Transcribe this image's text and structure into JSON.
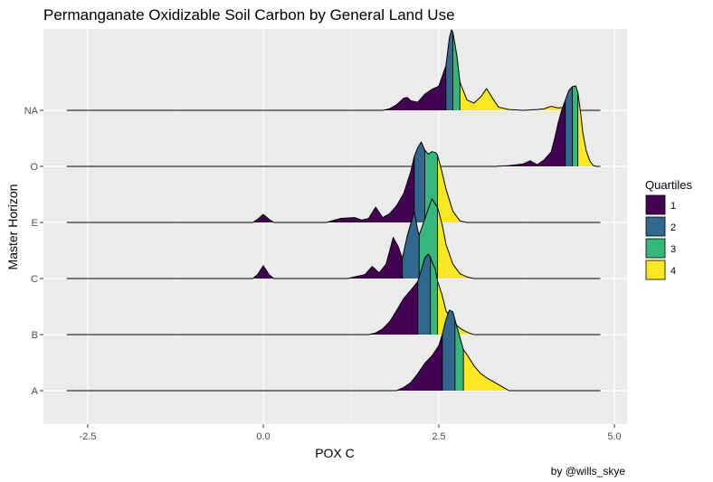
{
  "chart_data": {
    "type": "ridgeline",
    "title": "Permanganate Oxidizable Soil Carbon by General Land Use",
    "xlabel": "POX C",
    "ylabel": "Master Horizon",
    "caption": "by @wills_skye",
    "xlim": [
      -3.2,
      5.2
    ],
    "x_ticks": [
      -2.5,
      0.0,
      2.5,
      5.0
    ],
    "x_tick_labels": [
      "-2.5",
      "0.0",
      "2.5",
      "5.0"
    ],
    "categories": [
      "A",
      "B",
      "C",
      "E",
      "O",
      "NA"
    ],
    "baseline_range": [
      -2.8,
      4.8
    ],
    "legend": {
      "title": "Quartiles",
      "position": "right",
      "items": [
        {
          "label": "1",
          "color": "#440154"
        },
        {
          "label": "2",
          "color": "#31688E"
        },
        {
          "label": "3",
          "color": "#35B779"
        },
        {
          "label": "4",
          "color": "#FDE725"
        }
      ]
    },
    "series": [
      {
        "category": "A",
        "quartile_cuts": [
          2.55,
          2.73,
          2.85
        ],
        "x": [
          1.9,
          2.0,
          2.1,
          2.2,
          2.3,
          2.4,
          2.5,
          2.55,
          2.6,
          2.65,
          2.7,
          2.73,
          2.8,
          2.85,
          2.9,
          3.0,
          3.1,
          3.2,
          3.3,
          3.4,
          3.5
        ],
        "density": [
          0.0,
          0.04,
          0.1,
          0.21,
          0.34,
          0.43,
          0.56,
          0.7,
          0.88,
          1.0,
          0.98,
          0.88,
          0.66,
          0.51,
          0.45,
          0.31,
          0.21,
          0.15,
          0.1,
          0.05,
          0.0
        ]
      },
      {
        "category": "B",
        "quartile_cuts": [
          2.2,
          2.38,
          2.48
        ],
        "x": [
          1.5,
          1.6,
          1.7,
          1.8,
          1.9,
          2.0,
          2.1,
          2.2,
          2.25,
          2.3,
          2.35,
          2.38,
          2.4,
          2.45,
          2.48,
          2.55,
          2.6,
          2.7,
          2.8,
          2.9,
          3.0
        ],
        "density": [
          0.0,
          0.02,
          0.07,
          0.16,
          0.3,
          0.45,
          0.55,
          0.66,
          0.8,
          0.95,
          1.0,
          0.96,
          0.91,
          0.81,
          0.67,
          0.48,
          0.3,
          0.16,
          0.08,
          0.03,
          0.0
        ]
      },
      {
        "category": "C",
        "quartile_cuts": [
          1.98,
          2.22,
          2.48
        ],
        "x": [
          -0.15,
          -0.08,
          0.0,
          0.08,
          0.15,
          0.4,
          0.8,
          1.2,
          1.45,
          1.55,
          1.65,
          1.75,
          1.85,
          1.92,
          1.98,
          2.05,
          2.15,
          2.2,
          2.22,
          2.3,
          2.4,
          2.48,
          2.55,
          2.6,
          2.7,
          2.8,
          2.9,
          3.0
        ],
        "density": [
          0.0,
          0.05,
          0.16,
          0.05,
          0.0,
          0.0,
          0.0,
          0.0,
          0.05,
          0.15,
          0.07,
          0.18,
          0.51,
          0.4,
          0.25,
          0.53,
          0.83,
          0.6,
          0.54,
          0.74,
          0.99,
          0.89,
          0.66,
          0.43,
          0.18,
          0.06,
          0.02,
          0.0
        ]
      },
      {
        "category": "E",
        "quartile_cuts": [
          2.15,
          2.3,
          2.48
        ],
        "x": [
          -0.15,
          -0.08,
          0.0,
          0.08,
          0.15,
          0.5,
          0.9,
          1.1,
          1.3,
          1.4,
          1.5,
          1.6,
          1.7,
          1.8,
          1.9,
          2.0,
          2.1,
          2.15,
          2.2,
          2.25,
          2.3,
          2.35,
          2.4,
          2.45,
          2.48,
          2.55,
          2.6,
          2.7,
          2.8,
          2.9
        ],
        "density": [
          0.0,
          0.04,
          0.1,
          0.04,
          0.0,
          0.0,
          0.0,
          0.05,
          0.06,
          0.03,
          0.05,
          0.19,
          0.06,
          0.11,
          0.21,
          0.36,
          0.63,
          0.82,
          0.93,
          1.0,
          0.9,
          0.85,
          0.88,
          0.87,
          0.84,
          0.61,
          0.42,
          0.14,
          0.02,
          0.0
        ]
      },
      {
        "category": "O",
        "quartile_cuts": [
          4.3,
          4.4,
          4.48
        ],
        "x": [
          3.3,
          3.5,
          3.7,
          3.8,
          3.9,
          4.0,
          4.1,
          4.15,
          4.2,
          4.25,
          4.3,
          4.35,
          4.4,
          4.45,
          4.48,
          4.52,
          4.55,
          4.6,
          4.65,
          4.7,
          4.75
        ],
        "density": [
          0.0,
          0.01,
          0.03,
          0.07,
          0.02,
          0.08,
          0.18,
          0.35,
          0.54,
          0.7,
          0.82,
          0.94,
          0.99,
          1.0,
          0.92,
          0.66,
          0.42,
          0.19,
          0.07,
          0.01,
          0.0
        ]
      },
      {
        "category": "NA",
        "quartile_cuts": [
          2.6,
          2.7,
          2.8
        ],
        "x": [
          1.7,
          1.8,
          1.9,
          2.0,
          2.05,
          2.1,
          2.2,
          2.3,
          2.4,
          2.5,
          2.6,
          2.65,
          2.68,
          2.7,
          2.73,
          2.76,
          2.8,
          2.9,
          3.0,
          3.1,
          3.18,
          3.25,
          3.35,
          3.5,
          3.7,
          3.9,
          4.0,
          4.1,
          4.2,
          4.3,
          4.4,
          4.5,
          4.6,
          4.65,
          4.7,
          4.75,
          4.8
        ],
        "density": [
          0.0,
          0.02,
          0.07,
          0.15,
          0.16,
          0.12,
          0.1,
          0.2,
          0.26,
          0.3,
          0.55,
          0.9,
          1.0,
          0.97,
          0.82,
          0.66,
          0.35,
          0.13,
          0.09,
          0.17,
          0.27,
          0.17,
          0.04,
          0.01,
          0.0,
          0.01,
          0.02,
          0.05,
          0.03,
          0.04,
          0.01,
          0.0,
          0.0,
          0.0,
          0.0,
          0.0,
          0.0
        ]
      }
    ]
  }
}
